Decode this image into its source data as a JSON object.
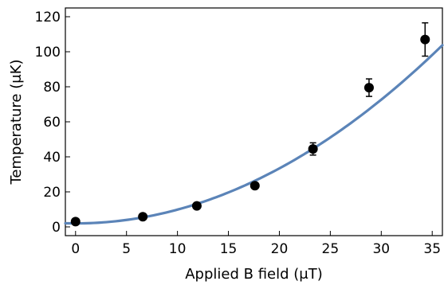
{
  "chart_data": {
    "type": "scatter",
    "title": "",
    "xlabel": "Applied B field (μT)",
    "ylabel": "Temperature (μK)",
    "xlim": [
      -1,
      36
    ],
    "ylim": [
      -5,
      125
    ],
    "xticks": [
      0,
      5,
      10,
      15,
      20,
      25,
      30,
      35
    ],
    "yticks": [
      0,
      20,
      40,
      60,
      80,
      100,
      120
    ],
    "grid": false,
    "series": [
      {
        "kind": "points_with_error_bars",
        "color": "#000000",
        "points": [
          {
            "x": 0.0,
            "y": 3.0,
            "err": 0.8
          },
          {
            "x": 6.6,
            "y": 5.8,
            "err": 0.6
          },
          {
            "x": 11.9,
            "y": 12.0,
            "err": 0.8
          },
          {
            "x": 17.6,
            "y": 23.5,
            "err": 1.0
          },
          {
            "x": 23.3,
            "y": 44.5,
            "err": 3.5
          },
          {
            "x": 28.8,
            "y": 79.5,
            "err": 5.0
          },
          {
            "x": 34.3,
            "y": 107.0,
            "err": 9.5
          }
        ]
      },
      {
        "kind": "fit_curve",
        "model": "y = a + b*x^2",
        "a": 2.0,
        "b": 0.0785,
        "color": "#5b84b8"
      }
    ]
  }
}
